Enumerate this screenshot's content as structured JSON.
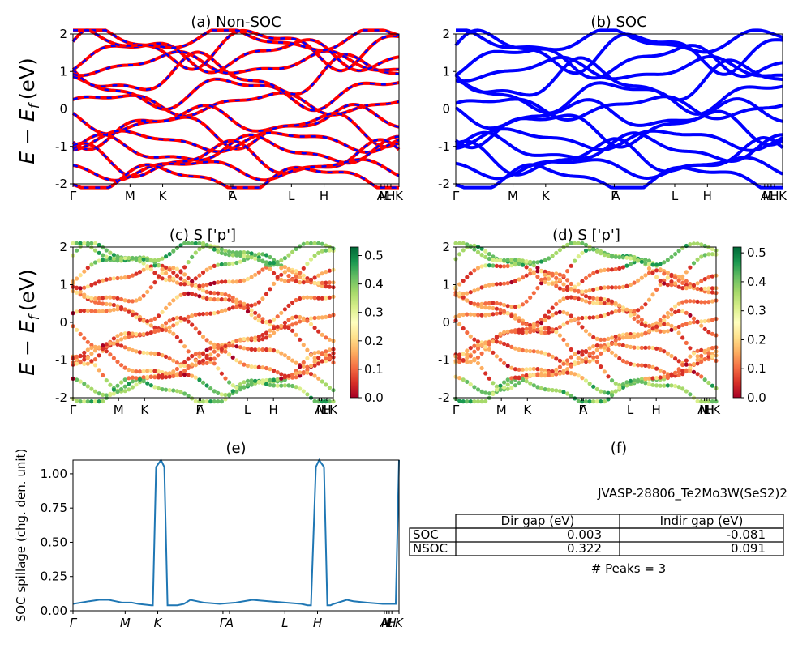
{
  "chart_data": [
    {
      "type": "line",
      "title": "(a) Non-SOC",
      "ylabel": "E − E",
      "ylabel_sub": "f",
      "ylabel_unit": "(eV)",
      "ylim": [
        -2,
        2
      ],
      "yticks": [
        2,
        1,
        0,
        -1,
        -2
      ],
      "xtick_labels": [
        "Γ",
        "M",
        "K",
        "Γ",
        "A",
        "L",
        "H",
        "A",
        "M",
        "L",
        "H",
        "K"
      ],
      "series_colors": [
        "#ff0000",
        "#0000ff"
      ],
      "line_style": "red solid with blue dashed overlay",
      "bands_above_fermi": [
        0.15,
        0.45,
        0.9,
        1.2,
        1.45,
        1.65,
        1.85
      ],
      "bands_below_fermi": [
        -0.3,
        -0.55,
        -0.85,
        -1.1,
        -1.35,
        -1.6,
        -1.85
      ]
    },
    {
      "type": "line",
      "title": "(b) SOC",
      "ylim": [
        -2,
        2
      ],
      "yticks": [
        2,
        1,
        0,
        -1,
        -2
      ],
      "xtick_labels": [
        "Γ",
        "M",
        "K",
        "Γ",
        "A",
        "L",
        "H",
        "A",
        "M",
        "L",
        "H",
        "K"
      ],
      "series_colors": [
        "#0000ff"
      ],
      "bands_above_fermi": [
        0.05,
        0.35,
        0.75,
        1.05,
        1.3,
        1.55,
        1.8
      ],
      "bands_below_fermi": [
        -0.15,
        -0.5,
        -0.8,
        -1.05,
        -1.3,
        -1.55,
        -1.85
      ]
    },
    {
      "type": "scatter",
      "title": "(c)  S ['p']",
      "ylabel": "E − E",
      "ylabel_sub": "f",
      "ylabel_unit": "(eV)",
      "ylim": [
        -2,
        2
      ],
      "yticks": [
        2,
        1,
        0,
        -1,
        -2
      ],
      "xtick_labels": [
        "Γ",
        "M",
        "K",
        "Γ",
        "A",
        "L",
        "H",
        "A",
        "M",
        "L",
        "H",
        "K"
      ],
      "colormap": "RdYlGn",
      "colorbar_ticks": [
        "0.5",
        "0.4",
        "0.3",
        "0.2",
        "0.1",
        "0.0"
      ],
      "colorbar_range": [
        0.0,
        0.53
      ]
    },
    {
      "type": "scatter",
      "title": "(d) S ['p']",
      "ylim": [
        -2,
        2
      ],
      "yticks": [
        2,
        1,
        0,
        -1,
        -2
      ],
      "xtick_labels": [
        "Γ",
        "M",
        "K",
        "Γ",
        "A",
        "L",
        "H",
        "A",
        "M",
        "L",
        "H",
        "K"
      ],
      "colormap": "RdYlGn",
      "colorbar_ticks": [
        "0.5",
        "0.4",
        "0.3",
        "0.2",
        "0.1",
        "0.0"
      ],
      "colorbar_range": [
        0.0,
        0.52
      ]
    },
    {
      "type": "line",
      "title": "(e)",
      "ylabel": "SOC spillage (chg. den. unit)",
      "ylim": [
        0,
        1.1
      ],
      "yticks": [
        "1.00",
        "0.75",
        "0.50",
        "0.25",
        "0.00"
      ],
      "xtick_labels": [
        "Γ",
        "M",
        "K",
        "Γ",
        "A",
        "L",
        "H",
        "A",
        "M",
        "L",
        "H",
        "K"
      ],
      "color": "#1f77b4",
      "x": [
        0,
        0.05,
        0.08,
        0.11,
        0.13,
        0.15,
        0.18,
        0.2,
        0.24,
        0.245,
        0.255,
        0.27,
        0.28,
        0.29,
        0.32,
        0.34,
        0.36,
        0.38,
        0.4,
        0.45,
        0.5,
        0.55,
        0.6,
        0.65,
        0.7,
        0.72,
        0.73,
        0.745,
        0.755,
        0.77,
        0.78,
        0.79,
        0.8,
        0.84,
        0.86,
        0.9,
        0.95,
        0.985,
        0.99,
        1.0
      ],
      "y": [
        0.05,
        0.07,
        0.08,
        0.08,
        0.07,
        0.06,
        0.06,
        0.05,
        0.04,
        0.04,
        1.05,
        1.1,
        1.05,
        0.04,
        0.04,
        0.05,
        0.08,
        0.07,
        0.06,
        0.05,
        0.06,
        0.08,
        0.07,
        0.06,
        0.05,
        0.04,
        0.04,
        1.05,
        1.1,
        1.05,
        0.04,
        0.04,
        0.05,
        0.08,
        0.07,
        0.06,
        0.05,
        0.05,
        0.05,
        1.1
      ]
    }
  ],
  "panel_f": {
    "title": "(f)",
    "material": "JVASP-28806_Te2Mo3W(SeS2)2",
    "table": {
      "headers": [
        "",
        "Dir gap (eV)",
        "Indir gap (eV)"
      ],
      "rows": [
        {
          "label": "SOC",
          "dir": "0.003",
          "indir": "-0.081"
        },
        {
          "label": "NSOC",
          "dir": "0.322",
          "indir": "0.091"
        }
      ]
    },
    "peaks": "# Peaks = 3"
  }
}
